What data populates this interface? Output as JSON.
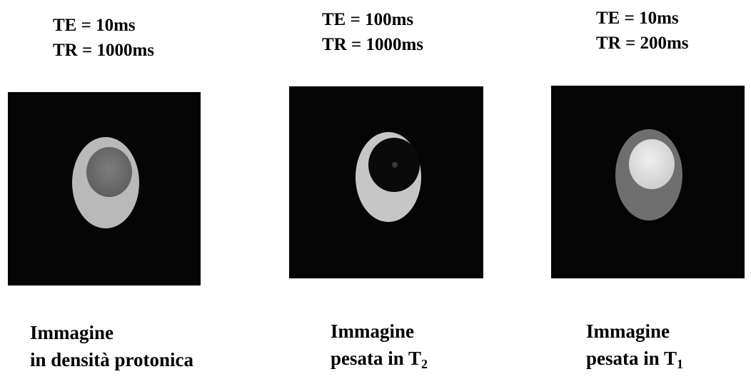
{
  "panels": [
    {
      "te": "TE = 10ms",
      "tr": "TR = 1000ms",
      "caption_line1": "Immagine",
      "caption_line2": "in densità protonica",
      "caption_sub": ""
    },
    {
      "te": "TE = 100ms",
      "tr": "TR = 1000ms",
      "caption_line1": "Immagine",
      "caption_line2": "pesata in T",
      "caption_sub": "2"
    },
    {
      "te": "TE = 10ms",
      "tr": "TR = 200ms",
      "caption_line1": "Immagine",
      "caption_line2": "pesata in T",
      "caption_sub": "1"
    }
  ],
  "colors": {
    "background": "#ffffff",
    "scan_background": "#050505",
    "text": "#000000"
  }
}
